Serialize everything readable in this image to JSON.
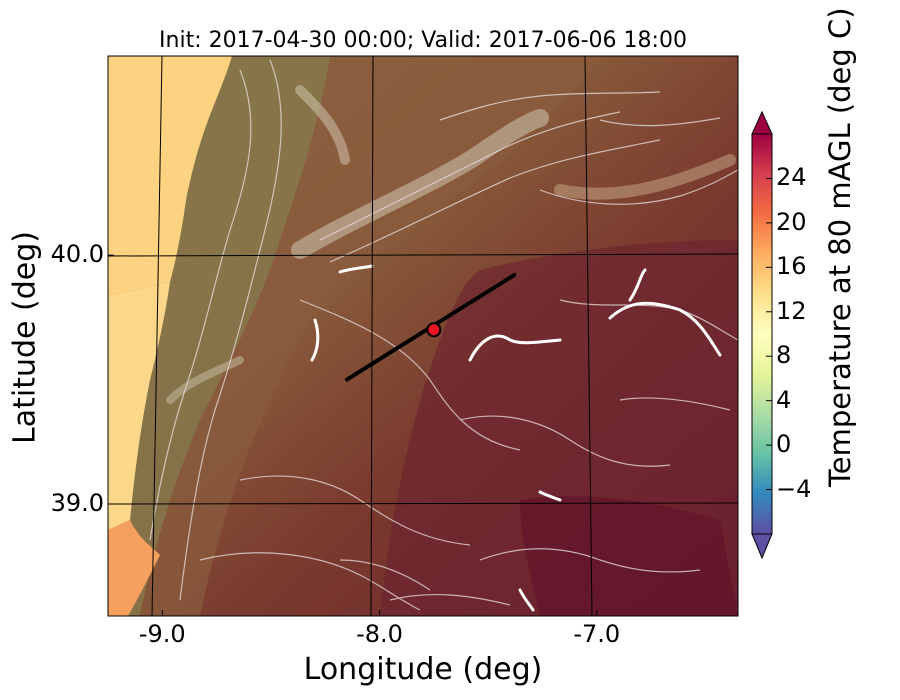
{
  "title": "Init: 2017-04-30 00:00; Valid: 2017-06-06 18:00",
  "x_axis": {
    "label": "Longitude (deg)",
    "ticks": [
      {
        "value": -9.0,
        "label": "-9.0"
      },
      {
        "value": -8.0,
        "label": "-8.0"
      },
      {
        "value": -7.0,
        "label": "-7.0"
      }
    ]
  },
  "y_axis": {
    "label": "Latitude (deg)",
    "ticks": [
      {
        "value": 40.0,
        "label": "40.0"
      },
      {
        "value": 39.0,
        "label": "39.0"
      }
    ]
  },
  "map": {
    "lon_range": [
      -9.25,
      -6.35
    ],
    "lat_range": [
      38.55,
      40.8
    ],
    "field": "Temperature at 80 mAGL",
    "land_colors": [
      "#8a7648",
      "#8a5a3a",
      "#7e3c2e",
      "#6e2230"
    ],
    "ocean_colors": [
      "#fdd281",
      "#f6a060"
    ],
    "transect": {
      "start": [
        -8.15,
        39.5
      ],
      "end": [
        -7.38,
        39.92
      ],
      "color": "#000000"
    },
    "site_marker": {
      "lon": -7.75,
      "lat": 39.7,
      "color": "#e8131e"
    }
  },
  "colorbar": {
    "label": "Temperature at 80 mAGL (deg C)",
    "min": -8,
    "max": 28,
    "extend": "both",
    "ticks": [
      {
        "value": -4,
        "label": "−4"
      },
      {
        "value": 0,
        "label": "0"
      },
      {
        "value": 4,
        "label": "4"
      },
      {
        "value": 8,
        "label": "8"
      },
      {
        "value": 12,
        "label": "12"
      },
      {
        "value": 16,
        "label": "16"
      },
      {
        "value": 20,
        "label": "20"
      },
      {
        "value": 24,
        "label": "24"
      }
    ],
    "colors": [
      "#5e4fa2",
      "#3288bd",
      "#66c2a5",
      "#abdda4",
      "#e6f598",
      "#ffffbf",
      "#fee08b",
      "#fdae61",
      "#f46d43",
      "#d53e4f",
      "#9e0142"
    ]
  }
}
